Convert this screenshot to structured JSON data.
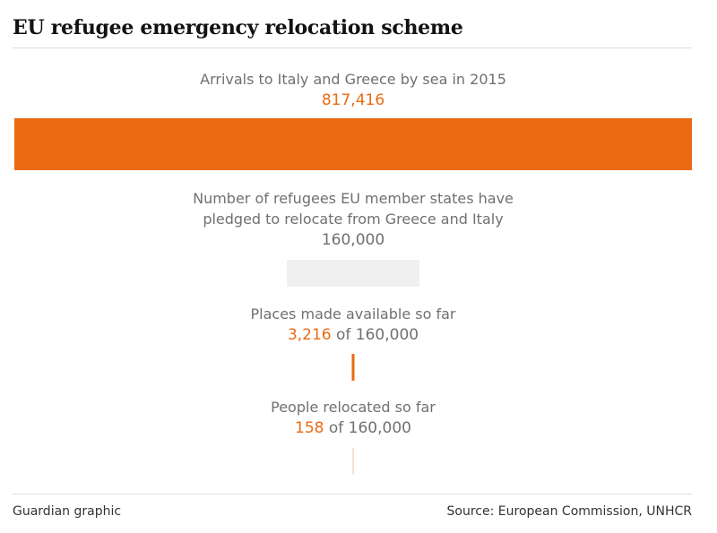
{
  "title": "EU refugee emergency relocation scheme",
  "footer": {
    "credit": "Guardian graphic",
    "source": "Source: European Commission, UNHCR"
  },
  "colors": {
    "accent": "#eb6a12",
    "pledged_bar": "#f0f0f0",
    "label_text": "#707070",
    "value_text": "#707070",
    "heading": "#121212"
  },
  "chart_data": {
    "type": "bar",
    "scale_max": 817416,
    "items": [
      {
        "label_lines": [
          "Arrivals to Italy and Greece by sea in 2015"
        ],
        "value": 817416,
        "value_text": "817,416",
        "suffix": "",
        "color": "#eb6a12"
      },
      {
        "label_lines": [
          "Number of refugees EU member states have",
          "pledged to relocate from Greece and Italy"
        ],
        "value": 160000,
        "value_text": "160,000",
        "suffix": "",
        "color": "#f0f0f0"
      },
      {
        "label_lines": [
          "Places made available so far"
        ],
        "value": 3216,
        "value_text": "3,216",
        "suffix": " of 160,000",
        "color": "#eb6a12"
      },
      {
        "label_lines": [
          "People relocated so far"
        ],
        "value": 158,
        "value_text": "158",
        "suffix": " of 160,000",
        "color": "#f3c4a4"
      }
    ]
  }
}
